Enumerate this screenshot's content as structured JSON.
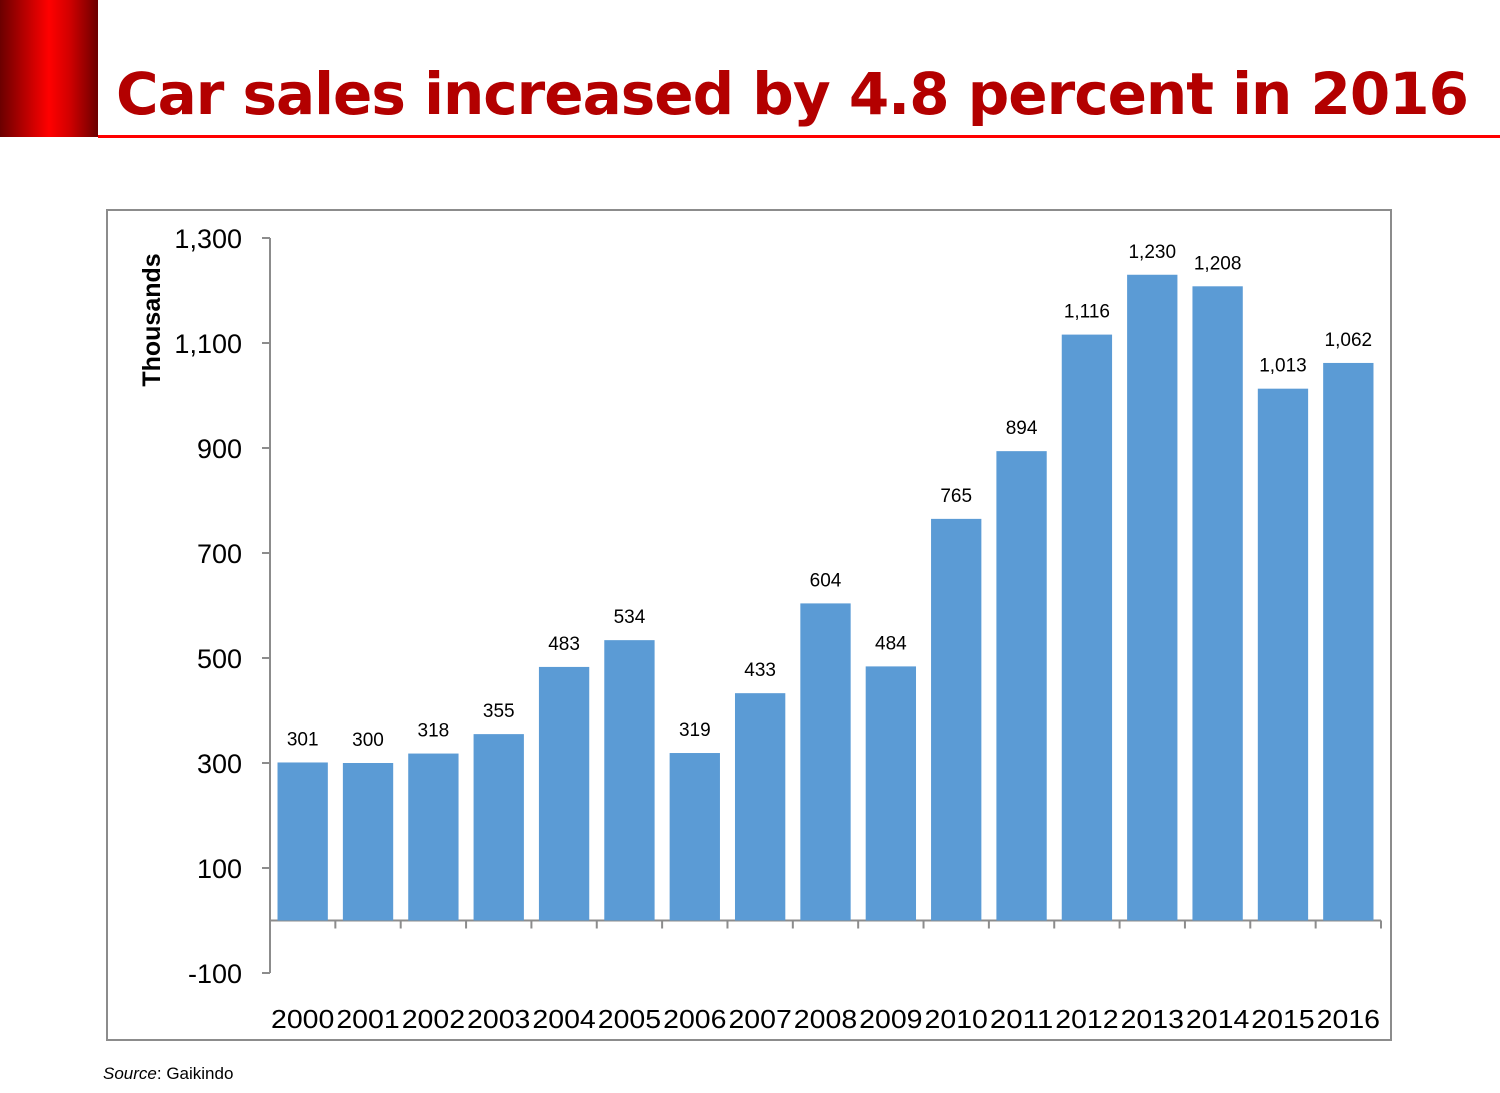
{
  "title": "Car sales increased by 4.8 percent in 2016",
  "source_label": "Source",
  "source_value": ": Gaikindo",
  "chart_data": {
    "type": "bar",
    "title": "",
    "xlabel": "",
    "ylabel": "Thousands",
    "ylim": [
      -100,
      1300
    ],
    "yticks": [
      -100,
      100,
      300,
      500,
      700,
      900,
      1100,
      1300
    ],
    "ytick_labels": [
      "-100",
      "100",
      "300",
      "500",
      "700",
      "900",
      "1,100",
      "1,300"
    ],
    "categories": [
      "2000",
      "2001",
      "2002",
      "2003",
      "2004",
      "2005",
      "2006",
      "2007",
      "2008",
      "2009",
      "2010",
      "2011",
      "2012",
      "2013",
      "2014",
      "2015",
      "2016"
    ],
    "values": [
      301,
      300,
      318,
      355,
      483,
      534,
      319,
      433,
      604,
      484,
      765,
      894,
      1116,
      1230,
      1208,
      1013,
      1062
    ],
    "data_labels": [
      "301",
      "300",
      "318",
      "355",
      "483",
      "534",
      "319",
      "433",
      "604",
      "484",
      "765",
      "894",
      "1,116",
      "1,230",
      "1,208",
      "1,013",
      "1,062"
    ],
    "bar_color": "#5b9bd5",
    "grid": false,
    "legend": "none"
  }
}
